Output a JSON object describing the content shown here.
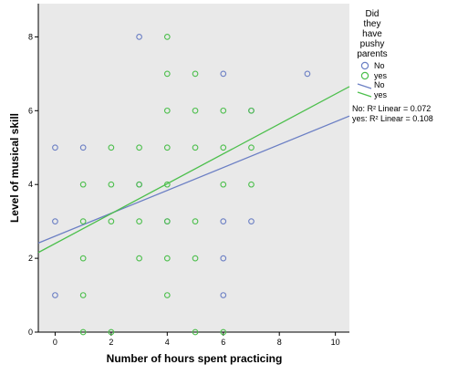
{
  "chart_data": {
    "type": "scatter",
    "xlabel": "Number of hours spent practicing",
    "ylabel": "Level of musical skill",
    "xlim": [
      -0.6,
      10.5
    ],
    "ylim": [
      0,
      8.9
    ],
    "xticks": [
      "0",
      "2",
      "4",
      "6",
      "8",
      "10"
    ],
    "xtick_values": [
      0,
      2,
      4,
      6,
      8,
      10
    ],
    "yticks": [
      "0",
      "2",
      "4",
      "6",
      "8"
    ],
    "ytick_values": [
      0,
      2,
      4,
      6,
      8
    ],
    "plot_background": "#e9e9e9",
    "grid": false,
    "legend": {
      "placement": "right",
      "title_lines": [
        "Did",
        "they",
        "have",
        "pushy",
        "parents"
      ],
      "marker_entries": [
        "No",
        "yes"
      ],
      "line_entries": [
        "No",
        "yes"
      ],
      "fit_notes": [
        "No: R² Linear = 0.072",
        "yes: R² Linear = 0.108"
      ]
    },
    "series": [
      {
        "name": "No",
        "color": "#6b7fc4",
        "marker": "open-circle",
        "points": [
          [
            0,
            5
          ],
          [
            0,
            3
          ],
          [
            0,
            1
          ],
          [
            1,
            5
          ],
          [
            3,
            8
          ],
          [
            3,
            4
          ],
          [
            4,
            3
          ],
          [
            6,
            7
          ],
          [
            6,
            3
          ],
          [
            6,
            2
          ],
          [
            6,
            1
          ],
          [
            7,
            6
          ],
          [
            7,
            3
          ],
          [
            9,
            7
          ]
        ],
        "fit": {
          "intercept": 2.6,
          "slope": 0.31
        }
      },
      {
        "name": "yes",
        "color": "#4cbf4c",
        "marker": "open-circle",
        "points": [
          [
            1,
            4
          ],
          [
            1,
            3
          ],
          [
            1,
            2
          ],
          [
            1,
            1
          ],
          [
            1,
            0
          ],
          [
            2,
            5
          ],
          [
            2,
            4
          ],
          [
            2,
            3
          ],
          [
            2,
            0
          ],
          [
            3,
            5
          ],
          [
            3,
            4
          ],
          [
            3,
            3
          ],
          [
            3,
            2
          ],
          [
            4,
            8
          ],
          [
            4,
            7
          ],
          [
            4,
            6
          ],
          [
            4,
            5
          ],
          [
            4,
            4
          ],
          [
            4,
            3
          ],
          [
            4,
            2
          ],
          [
            4,
            1
          ],
          [
            5,
            7
          ],
          [
            5,
            6
          ],
          [
            5,
            5
          ],
          [
            5,
            3
          ],
          [
            5,
            2
          ],
          [
            5,
            0
          ],
          [
            6,
            6
          ],
          [
            6,
            5
          ],
          [
            6,
            4
          ],
          [
            6,
            0
          ],
          [
            7,
            6
          ],
          [
            7,
            5
          ],
          [
            7,
            4
          ]
        ],
        "fit": {
          "intercept": 2.4,
          "slope": 0.405
        }
      }
    ]
  }
}
